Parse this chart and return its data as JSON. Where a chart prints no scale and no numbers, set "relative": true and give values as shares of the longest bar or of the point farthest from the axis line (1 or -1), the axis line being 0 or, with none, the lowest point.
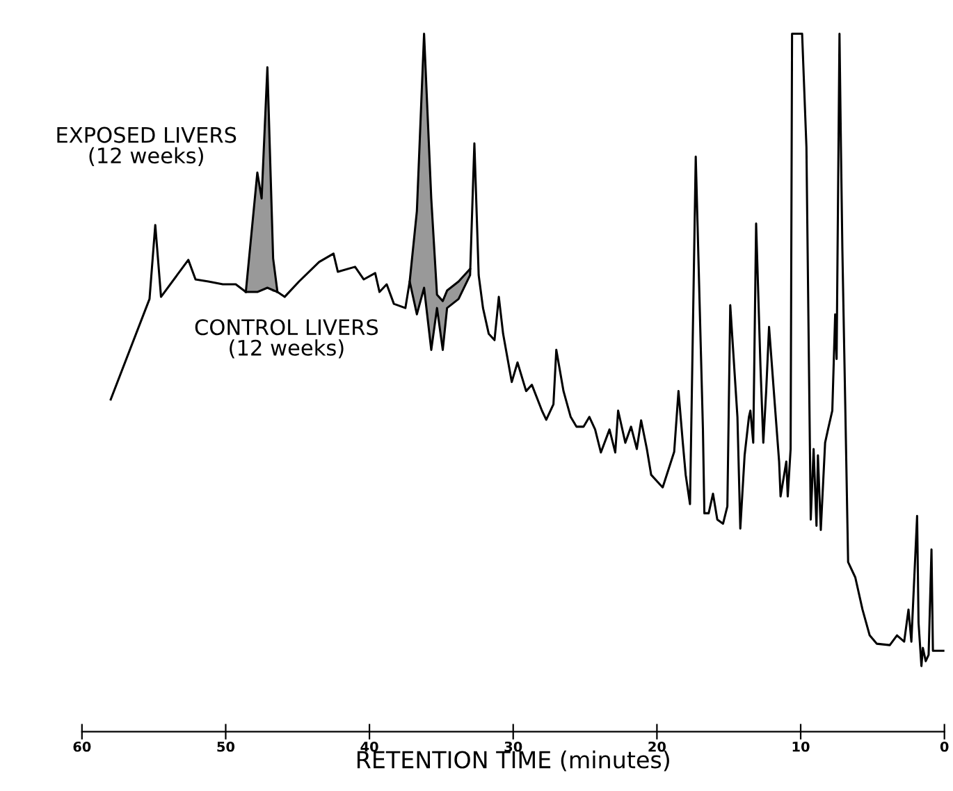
{
  "chart_data": {
    "type": "line",
    "relative": true,
    "xlabel": "RETENTION TIME (minutes)",
    "xlim": [
      60,
      0
    ],
    "xticks": [
      60,
      50,
      40,
      30,
      20,
      10,
      0
    ],
    "grid": false,
    "legend": false,
    "line_style": "solid",
    "marker": "none",
    "series": [
      {
        "name": "EXPOSED LIVERS\n(12 weeks)",
        "color": "#000000",
        "x": [
          48.6,
          47.8,
          47.5,
          47.1,
          46.7,
          46.4,
          42.0,
          37.2,
          36.7,
          36.2,
          35.7,
          35.3,
          34.9,
          34.6,
          33.8,
          33.0
        ],
        "values": [
          0.63,
          0.801,
          0.764,
          0.952,
          0.678,
          0.63,
          null,
          0.645,
          0.746,
          1.0,
          0.764,
          0.626,
          0.617,
          0.632,
          0.645,
          0.663
        ],
        "lower": [
          0.63,
          0.63,
          0.632,
          0.636,
          0.63,
          0.63,
          null,
          0.645,
          0.598,
          0.636,
          0.547,
          0.607,
          0.547,
          0.607,
          0.62,
          0.654
        ],
        "upper": [
          0.63,
          0.801,
          0.764,
          0.952,
          0.678,
          0.63,
          null,
          0.645,
          0.746,
          1.0,
          0.764,
          0.626,
          0.617,
          0.632,
          0.645,
          0.663
        ]
      },
      {
        "name": "CONTROL LIVERS\n(12 weeks)",
        "color": "#000000",
        "x": [
          58.0,
          55.3,
          54.9,
          54.5,
          52.6,
          52.1,
          51.2,
          50.2,
          49.3,
          48.6,
          47.8,
          47.1,
          46.4,
          45.9,
          44.9,
          43.5,
          42.5,
          42.2,
          41.0,
          40.4,
          39.6,
          39.3,
          38.8,
          38.3,
          37.5,
          37.2,
          36.7,
          36.2,
          35.7,
          35.3,
          34.9,
          34.6,
          33.8,
          33.0,
          32.7,
          32.4,
          32.1,
          31.7,
          31.3,
          31.0,
          30.7,
          30.1,
          29.7,
          29.1,
          28.7,
          28.0,
          27.7,
          27.2,
          27.0,
          26.5,
          26.0,
          25.6,
          25.1,
          24.7,
          24.3,
          23.9,
          23.3,
          22.9,
          22.7,
          22.2,
          21.8,
          21.4,
          21.1,
          20.7,
          20.4,
          20.0,
          19.6,
          18.8,
          18.5,
          18.2,
          18.0,
          17.7,
          17.3,
          17.1,
          16.8,
          16.7,
          16.4,
          16.1,
          15.8,
          15.4,
          15.1,
          14.9,
          14.4,
          14.2,
          13.9,
          13.6,
          13.5,
          13.3,
          13.1,
          12.8,
          12.6,
          12.4,
          12.2,
          11.8,
          11.5,
          11.4,
          11.0,
          10.9,
          10.7,
          10.6,
          9.9,
          9.6,
          9.3,
          9.1,
          8.9,
          8.8,
          8.6,
          8.3,
          8.1,
          7.8,
          7.6,
          7.5,
          7.3,
          7.2,
          7.1,
          6.9,
          6.7,
          6.2,
          5.7,
          5.2,
          4.7,
          3.8,
          3.3,
          2.8,
          2.5,
          2.3,
          1.9,
          1.8,
          1.6,
          1.5,
          1.3,
          1.1,
          0.9,
          0.8,
          0.0
        ],
        "values": [
          0.476,
          0.62,
          0.726,
          0.623,
          0.676,
          0.648,
          0.645,
          0.641,
          0.641,
          0.63,
          0.63,
          0.636,
          0.63,
          0.623,
          0.645,
          0.673,
          0.685,
          0.659,
          0.666,
          0.648,
          0.657,
          0.63,
          0.641,
          0.613,
          0.607,
          0.645,
          0.598,
          0.636,
          0.547,
          0.607,
          0.547,
          0.607,
          0.62,
          0.654,
          0.843,
          0.654,
          0.607,
          0.57,
          0.561,
          0.623,
          0.57,
          0.501,
          0.529,
          0.488,
          0.497,
          0.46,
          0.447,
          0.469,
          0.547,
          0.488,
          0.451,
          0.437,
          0.437,
          0.451,
          0.433,
          0.4,
          0.433,
          0.4,
          0.46,
          0.414,
          0.437,
          0.405,
          0.446,
          0.405,
          0.368,
          0.359,
          0.35,
          0.401,
          0.488,
          0.414,
          0.368,
          0.326,
          0.824,
          0.668,
          0.433,
          0.313,
          0.313,
          0.341,
          0.304,
          0.298,
          0.323,
          0.611,
          0.451,
          0.291,
          0.396,
          0.451,
          0.46,
          0.414,
          0.728,
          0.525,
          0.414,
          0.488,
          0.58,
          0.469,
          0.387,
          0.337,
          0.387,
          0.337,
          0.405,
          1.0,
          1.0,
          0.838,
          0.304,
          0.405,
          0.295,
          0.396,
          0.289,
          0.414,
          0.433,
          0.46,
          0.598,
          0.534,
          1.0,
          0.838,
          0.691,
          0.469,
          0.243,
          0.221,
          0.175,
          0.138,
          0.126,
          0.124,
          0.138,
          0.129,
          0.175,
          0.129,
          0.309,
          0.156,
          0.094,
          0.12,
          0.101,
          0.11,
          0.261,
          0.116,
          0.116
        ]
      }
    ]
  }
}
